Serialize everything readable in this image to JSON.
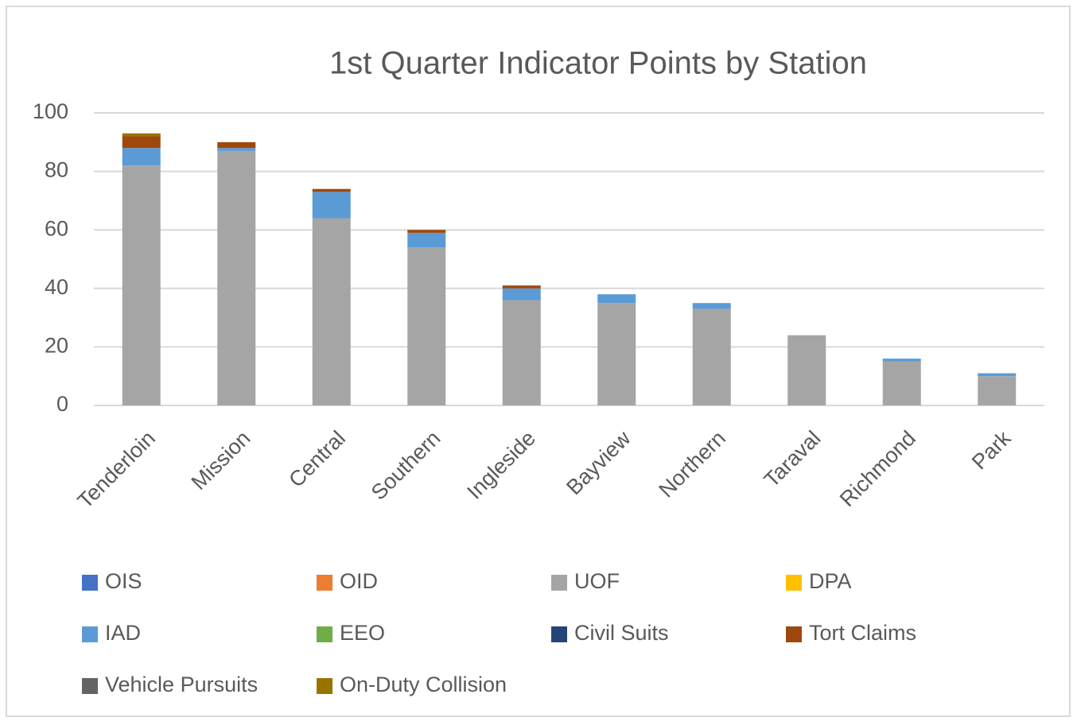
{
  "chart_data": {
    "type": "stacked_bar",
    "title": "1st Quarter Indicator Points by Station",
    "categories": [
      "Tenderloin",
      "Mission",
      "Central",
      "Southern",
      "Ingleside",
      "Bayview",
      "Northern",
      "Taraval",
      "Richmond",
      "Park"
    ],
    "series": [
      {
        "name": "OIS",
        "color": "#4472c4",
        "values": [
          0,
          0,
          0,
          0,
          0,
          0,
          0,
          0,
          0,
          0
        ]
      },
      {
        "name": "OID",
        "color": "#ed7d31",
        "values": [
          0,
          0,
          0,
          0,
          0,
          0,
          0,
          0,
          0,
          0
        ]
      },
      {
        "name": "UOF",
        "color": "#a5a5a5",
        "values": [
          82,
          87,
          64,
          54,
          36,
          35,
          33,
          24,
          15,
          10
        ]
      },
      {
        "name": "DPA",
        "color": "#ffc000",
        "values": [
          0,
          0,
          0,
          0,
          0,
          0,
          0,
          0,
          0,
          0
        ]
      },
      {
        "name": "IAD",
        "color": "#5b9bd5",
        "values": [
          6,
          1,
          9,
          5,
          4,
          3,
          2,
          0,
          1,
          1
        ]
      },
      {
        "name": "EEO",
        "color": "#70ad47",
        "values": [
          0,
          0,
          0,
          0,
          0,
          0,
          0,
          0,
          0,
          0
        ]
      },
      {
        "name": "Civil Suits",
        "color": "#264478",
        "values": [
          0,
          0,
          0,
          0,
          0,
          0,
          0,
          0,
          0,
          0
        ]
      },
      {
        "name": "Tort Claims",
        "color": "#9e480e",
        "values": [
          4,
          2,
          1,
          1,
          1,
          0,
          0,
          0,
          0,
          0
        ]
      },
      {
        "name": "Vehicle Pursuits",
        "color": "#636363",
        "values": [
          0,
          0,
          0,
          0,
          0,
          0,
          0,
          0,
          0,
          0
        ]
      },
      {
        "name": "On-Duty Collision",
        "color": "#997300",
        "values": [
          1,
          0,
          0,
          0,
          0,
          0,
          0,
          0,
          0,
          0
        ]
      }
    ],
    "ylim": [
      0,
      100
    ],
    "yticks": [
      0,
      20,
      40,
      60,
      80,
      100
    ],
    "grid": true,
    "legend": "bottom"
  }
}
